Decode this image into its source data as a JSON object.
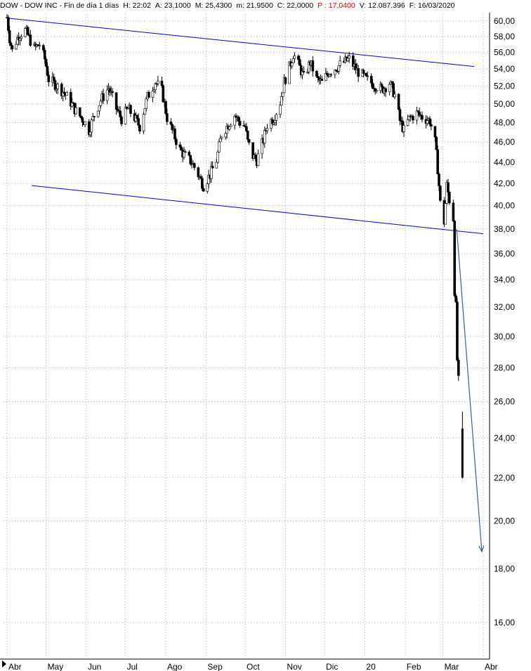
{
  "header": {
    "title": "DOW - DOW INC - Fin de día 1 días",
    "high": "H: 22:02",
    "ask": "A: 23,1000",
    "max": "M: 25,4300",
    "min": "m: 21,9500",
    "close": "C: 22,0000",
    "pct": "P : 17,0400",
    "volume": "V: 12.087.396",
    "date": "F: 16/03/2020"
  },
  "colors": {
    "candle": "#000000",
    "trendline": "#0000cc",
    "projection_arrow": "#3a5f9a",
    "grid": "#b0b0b0",
    "pct_text": "#e00000"
  },
  "chart_data": {
    "type": "candlestick",
    "y_scale": "log",
    "ylim": [
      15,
      61
    ],
    "grid": true,
    "y_ticks": [
      "60,00",
      "58,00",
      "56,00",
      "54,00",
      "52,00",
      "50,00",
      "48,00",
      "46,00",
      "44,00",
      "42,00",
      "40,00",
      "38,00",
      "36,00",
      "34,00",
      "32,00",
      "30,00",
      "28,00",
      "26,00",
      "24,00",
      "22,00",
      "20,00",
      "18,00",
      "16,00"
    ],
    "y_tick_values": [
      60,
      58,
      56,
      54,
      52,
      50,
      48,
      46,
      44,
      42,
      40,
      38,
      36,
      34,
      32,
      30,
      28,
      26,
      24,
      22,
      20,
      18,
      16
    ],
    "x_ticks": [
      "Abr",
      "May",
      "Jun",
      "Jul",
      "Ago",
      "Sep",
      "Oct",
      "Nov",
      "Dic",
      "20",
      "Feb",
      "Mar",
      "Abr"
    ],
    "x_tick_dates": [
      "2019-04-01",
      "2019-05-01",
      "2019-06-01",
      "2019-07-01",
      "2019-08-01",
      "2019-09-01",
      "2019-10-01",
      "2019-11-01",
      "2019-12-01",
      "2020-01-01",
      "2020-02-01",
      "2020-03-01",
      "2020-04-01"
    ],
    "close_path": [
      [
        "2019-04-01",
        60.5
      ],
      [
        "2019-04-03",
        57.8
      ],
      [
        "2019-04-05",
        56.2
      ],
      [
        "2019-04-10",
        58.2
      ],
      [
        "2019-04-15",
        58.8
      ],
      [
        "2019-04-22",
        56.5
      ],
      [
        "2019-04-26",
        57.0
      ],
      [
        "2019-04-30",
        55.2
      ],
      [
        "2019-05-03",
        52.8
      ],
      [
        "2019-05-08",
        52.2
      ],
      [
        "2019-05-14",
        51.4
      ],
      [
        "2019-05-20",
        50.2
      ],
      [
        "2019-05-24",
        49.2
      ],
      [
        "2019-05-30",
        48.2
      ],
      [
        "2019-06-03",
        47.2
      ],
      [
        "2019-06-07",
        48.8
      ],
      [
        "2019-06-12",
        50.4
      ],
      [
        "2019-06-18",
        51.8
      ],
      [
        "2019-06-24",
        49.5
      ],
      [
        "2019-06-28",
        48.4
      ],
      [
        "2019-07-03",
        49.5
      ],
      [
        "2019-07-08",
        48.5
      ],
      [
        "2019-07-12",
        47.6
      ],
      [
        "2019-07-18",
        50.8
      ],
      [
        "2019-07-24",
        52.5
      ],
      [
        "2019-07-29",
        51.5
      ],
      [
        "2019-08-02",
        48.5
      ],
      [
        "2019-08-07",
        46.8
      ],
      [
        "2019-08-12",
        45.2
      ],
      [
        "2019-08-16",
        44.6
      ],
      [
        "2019-08-21",
        44.0
      ],
      [
        "2019-08-26",
        42.8
      ],
      [
        "2019-08-30",
        41.8
      ],
      [
        "2019-09-04",
        42.8
      ],
      [
        "2019-09-09",
        44.2
      ],
      [
        "2019-09-13",
        46.8
      ],
      [
        "2019-09-18",
        47.8
      ],
      [
        "2019-09-23",
        48.8
      ],
      [
        "2019-09-27",
        48.0
      ],
      [
        "2019-10-01",
        47.6
      ],
      [
        "2019-10-03",
        46.0
      ],
      [
        "2019-10-07",
        44.6
      ],
      [
        "2019-10-10",
        44.2
      ],
      [
        "2019-10-15",
        46.2
      ],
      [
        "2019-10-18",
        47.8
      ],
      [
        "2019-10-23",
        48.5
      ],
      [
        "2019-10-28",
        50.2
      ],
      [
        "2019-10-31",
        52.5
      ],
      [
        "2019-11-04",
        54.2
      ],
      [
        "2019-11-07",
        55.8
      ],
      [
        "2019-11-12",
        54.2
      ],
      [
        "2019-11-15",
        53.0
      ],
      [
        "2019-11-20",
        54.8
      ],
      [
        "2019-11-25",
        52.8
      ],
      [
        "2019-11-29",
        52.4
      ],
      [
        "2019-12-04",
        53.6
      ],
      [
        "2019-12-10",
        54.2
      ],
      [
        "2019-12-16",
        54.8
      ],
      [
        "2019-12-20",
        55.2
      ],
      [
        "2019-12-26",
        53.8
      ],
      [
        "2020-01-02",
        52.8
      ],
      [
        "2020-01-08",
        52.2
      ],
      [
        "2020-01-14",
        51.6
      ],
      [
        "2020-01-20",
        52.4
      ],
      [
        "2020-01-24",
        51.0
      ],
      [
        "2020-01-28",
        48.2
      ],
      [
        "2020-01-31",
        47.2
      ],
      [
        "2020-02-04",
        48.4
      ],
      [
        "2020-02-10",
        49.0
      ],
      [
        "2020-02-14",
        48.6
      ],
      [
        "2020-02-20",
        48.2
      ],
      [
        "2020-02-24",
        46.0
      ],
      [
        "2020-02-26",
        43.4
      ],
      [
        "2020-02-28",
        40.2
      ],
      [
        "2020-03-02",
        38.6
      ],
      [
        "2020-03-04",
        41.8
      ],
      [
        "2020-03-06",
        40.5
      ],
      [
        "2020-03-09",
        38.9
      ],
      [
        "2020-03-10",
        33.2
      ],
      [
        "2020-03-11",
        32.0
      ],
      [
        "2020-03-12",
        28.5
      ],
      [
        "2020-03-13",
        27.2
      ],
      [
        "2020-03-16",
        22.0
      ]
    ],
    "last_candle": {
      "date": "2020-03-16",
      "high": 25.43,
      "low": 21.95,
      "close": 22.0
    },
    "trendlines": [
      {
        "name": "upper-channel",
        "from": [
          "2019-04-01",
          60.4
        ],
        "to": [
          "2020-03-25",
          54.3
        ]
      },
      {
        "name": "lower-channel",
        "from": [
          "2019-04-20",
          41.8
        ],
        "to": [
          "2020-04-01",
          37.6
        ]
      }
    ],
    "projection": {
      "from": [
        "2020-03-10",
        38.0
      ],
      "to": [
        "2020-04-01",
        18.7
      ]
    }
  }
}
